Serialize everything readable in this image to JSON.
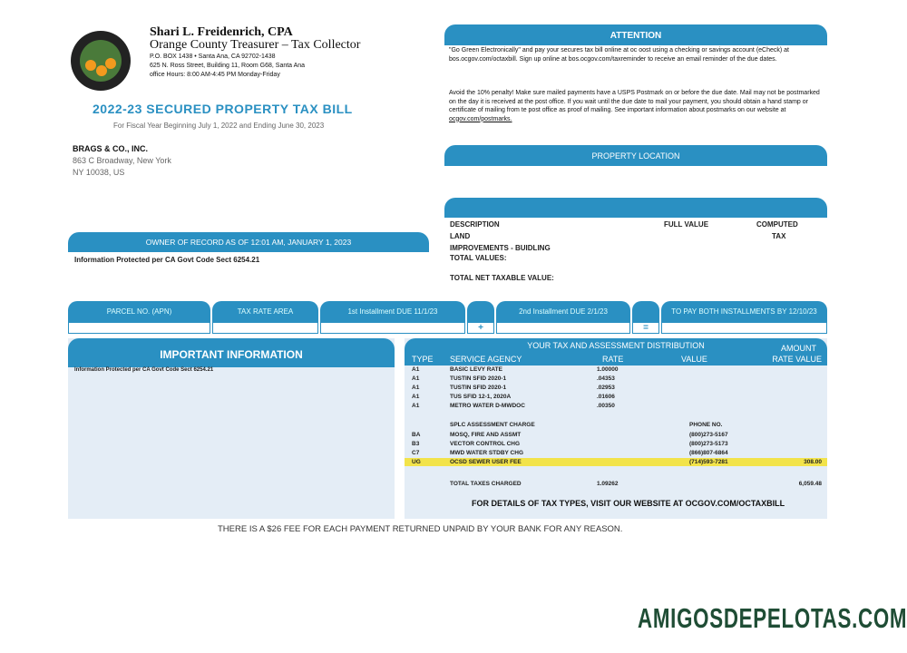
{
  "header": {
    "name": "Shari L. Freidenrich, CPA",
    "office": "Orange County Treasurer – Tax Collector",
    "po_box": "P.O. BOX 1438 • Santa Ana, CA 92702-1438",
    "street": "625 N. Ross Street, Building 11, Room G68, Santa Ana",
    "hours": "office Hours: 8:00 AM-4:45 PM Monday-Friday",
    "seal_text": "COUNTY OF ORANGE CALIFORNIA"
  },
  "title": "2022-23 SECURED PROPERTY TAX BILL",
  "subtitle": "For Fiscal Year Beginning July 1, 2022 and Ending June 30, 2023",
  "addressee": {
    "name": "BRAGS & CO., INC.",
    "line1": "863 C Broadway, New York",
    "line2": "NY 10038, US"
  },
  "attention": {
    "title": "ATTENTION",
    "p1": "\"Go Green Electronically\" and pay your secures tax bill online at oc oost using a checking or savings account (eCheck) at bos.ocgov.com/octaxbill. Sign up online at bos.ocgov.com/taxreminder to receive an email reminder of the due dates.",
    "p2": "Avoid the 10% penalty! Make sure mailed payments have a USPS Postmark on or before the due date. Mail may not be postmarked on the day it is received at the post office. If you wait until the due date to mail your payment, you should obtain a hand stamp or certificate of mailing from te post office as proof of mailing. See important information about postmarks on our website at ",
    "p2_link": "ocgov.com/postmarks."
  },
  "property_location": {
    "title": "PROPERTY LOCATION"
  },
  "values": {
    "description": "DESCRIPTION",
    "full_value": "FULL VALUE",
    "computed_tax": "COMPUTED",
    "computed_tax2": "TAX",
    "land": "LAND",
    "improvements": "IMPROVEMENTS - BUIDLING",
    "total_values": "TOTAL VALUES:",
    "total_net": "TOTAL NET TAXABLE VALUE:"
  },
  "owner": {
    "title": "OWNER OF RECORD AS OF 12:01 AM, JANUARY 1, 2023",
    "text": "Information Protected per CA Govt Code Sect 6254.21"
  },
  "installments": {
    "parcel": "PARCEL NO. (APN)",
    "tra": "TAX RATE AREA",
    "first": "1st Installment DUE 11/1/23",
    "plus": "+",
    "second": "2nd Installment DUE 2/1/23",
    "equals": "=",
    "both": "TO PAY BOTH INSTALLMENTS BY 12/10/23"
  },
  "important": {
    "title": "IMPORTANT INFORMATION",
    "text": "Information Protected per CA Govt Code Sect 6254.21"
  },
  "distribution": {
    "title": "YOUR TAX AND ASSESSMENT DISTRIBUTION",
    "amount": "AMOUNT",
    "cols": {
      "type": "TYPE",
      "agency": "SERVICE AGENCY",
      "rate": "RATE",
      "value": "VALUE",
      "rate_value": "RATE VALUE"
    },
    "rows": [
      {
        "type": "A1",
        "agency": "BASIC LEVY RATE",
        "rate": "1.00000"
      },
      {
        "type": "A1",
        "agency": "TUSTIN SFID 2020-1",
        "rate": ".04353"
      },
      {
        "type": "A1",
        "agency": "TUSTIN SFID 2020-1",
        "rate": ".02953"
      },
      {
        "type": "A1",
        "agency": "TUS SFID 12-1, 2020A",
        "rate": ".01606"
      },
      {
        "type": "A1",
        "agency": "METRO WATER D-MWDOC",
        "rate": ".00350"
      }
    ],
    "splc": "SPLC ASSESSMENT CHARGE",
    "phone": "PHONE NO.",
    "assess": [
      {
        "type": "BA",
        "agency": "MOSQ, FIRE AND ASSMT",
        "phone": "(800)273-5167",
        "amount": ""
      },
      {
        "type": "B3",
        "agency": "VECTOR CONTROL CHG",
        "phone": "(800)273-5173",
        "amount": ""
      },
      {
        "type": "C7",
        "agency": "MWD WATER STDBY CHG",
        "phone": "(866)807-6864",
        "amount": ""
      },
      {
        "type": "UG",
        "agency": "OCSD SEWER USER FEE",
        "phone": "(714)593-7281",
        "amount": "308.00"
      }
    ],
    "total_label": "TOTAL TAXES CHARGED",
    "total_rate": "1.09262",
    "total_amount": "6,059.48",
    "footer": "FOR DETAILS OF TAX TYPES, VISIT OUR WEBSITE AT OCGOV.COM/OCTAXBILL",
    "highlight": "#f2e34a"
  },
  "fee_notice": "THERE IS A $26 FEE FOR EACH PAYMENT RETURNED UNPAID BY YOUR BANK FOR ANY REASON.",
  "watermark": "AMIGOSDEPELOTAS.COM",
  "colors": {
    "accent": "#2a90c2",
    "panel": "#e4edf6"
  }
}
